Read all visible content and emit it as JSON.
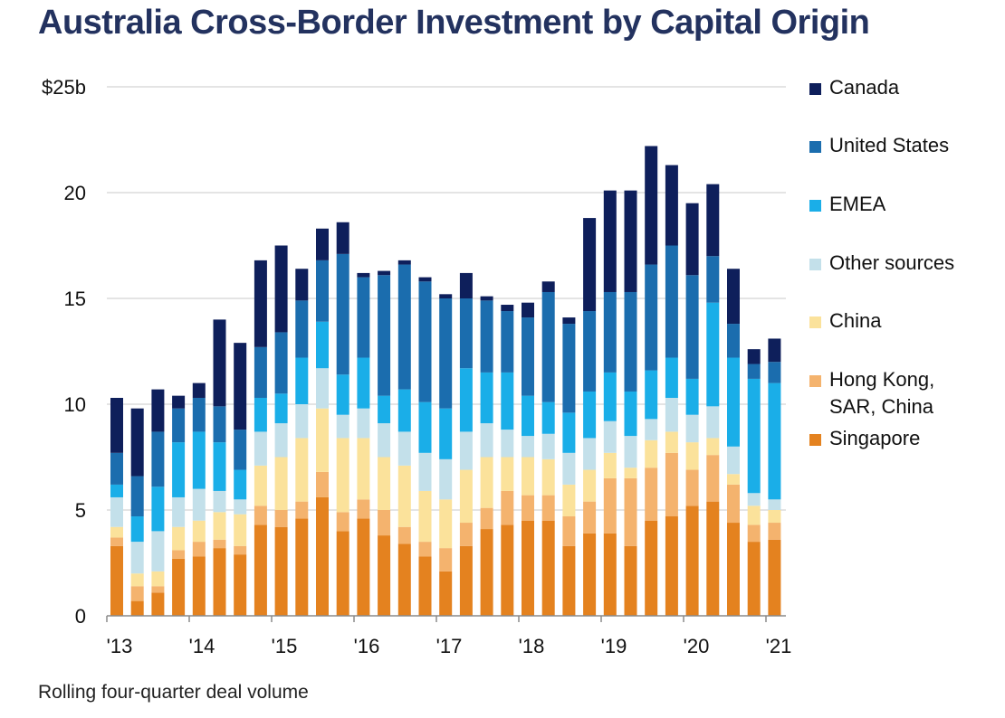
{
  "title": "Australia Cross-Border Investment by Capital Origin",
  "footnote": "Rolling four-quarter deal volume",
  "colors": {
    "Canada": "#0e1f5b",
    "United States": "#1b6dae",
    "EMEA": "#1aaee8",
    "Other sources": "#c3e0ea",
    "China": "#fbe29b",
    "Hong Kong, SAR, China": "#f4b36e",
    "Singapore": "#e4821f"
  },
  "chart_data": {
    "type": "bar",
    "stacked": true,
    "x": [
      "2013 Q1",
      "2013 Q2",
      "2013 Q3",
      "2013 Q4",
      "2014 Q1",
      "2014 Q2",
      "2014 Q3",
      "2014 Q4",
      "2015 Q1",
      "2015 Q2",
      "2015 Q3",
      "2015 Q4",
      "2016 Q1",
      "2016 Q2",
      "2016 Q3",
      "2016 Q4",
      "2017 Q1",
      "2017 Q2",
      "2017 Q3",
      "2017 Q4",
      "2018 Q1",
      "2018 Q2",
      "2018 Q3",
      "2018 Q4",
      "2019 Q1",
      "2019 Q2",
      "2019 Q3",
      "2019 Q4",
      "2020 Q1",
      "2020 Q2",
      "2020 Q3",
      "2020 Q4",
      "2021 Q1"
    ],
    "x_tick_labels": [
      "'13",
      "'14",
      "'15",
      "'16",
      "'17",
      "'18",
      "'19",
      "'20",
      "'21"
    ],
    "y_tick_labels": [
      "0",
      "5",
      "10",
      "15",
      "20",
      "$25b"
    ],
    "ylim": [
      0,
      25
    ],
    "grid": true,
    "legend_position": "right",
    "series": [
      {
        "name": "Singapore",
        "values": [
          3.3,
          0.7,
          1.1,
          2.7,
          2.8,
          3.2,
          2.9,
          4.3,
          4.2,
          4.6,
          5.6,
          4.0,
          4.6,
          3.8,
          3.4,
          2.8,
          2.1,
          3.3,
          4.1,
          4.3,
          4.5,
          4.5,
          3.3,
          3.9,
          3.9,
          3.3,
          4.5,
          4.7,
          5.2,
          5.4,
          4.4,
          3.5,
          3.6
        ]
      },
      {
        "name": "Hong Kong, SAR, China",
        "values": [
          0.4,
          0.7,
          0.3,
          0.4,
          0.7,
          0.4,
          0.4,
          0.9,
          0.8,
          0.8,
          1.2,
          0.9,
          0.9,
          1.2,
          0.8,
          0.7,
          1.1,
          1.1,
          1.0,
          1.6,
          1.2,
          1.2,
          1.4,
          1.5,
          2.6,
          3.2,
          2.5,
          3.0,
          1.7,
          2.2,
          1.8,
          0.8,
          0.8
        ]
      },
      {
        "name": "China",
        "values": [
          0.5,
          0.6,
          0.7,
          1.1,
          1.0,
          1.3,
          1.5,
          1.9,
          2.5,
          3.0,
          3.0,
          3.5,
          2.9,
          2.5,
          2.9,
          2.4,
          2.3,
          2.5,
          2.4,
          1.6,
          1.8,
          1.7,
          1.5,
          1.5,
          1.2,
          0.5,
          1.3,
          1.0,
          1.3,
          0.8,
          0.5,
          0.9,
          0.6
        ]
      },
      {
        "name": "Other sources",
        "values": [
          1.4,
          1.5,
          1.9,
          1.4,
          1.5,
          1.0,
          0.7,
          1.6,
          1.6,
          1.6,
          1.9,
          1.1,
          1.4,
          1.6,
          1.6,
          1.8,
          1.9,
          1.8,
          1.6,
          1.3,
          1.0,
          1.2,
          1.5,
          1.5,
          1.5,
          1.5,
          1.0,
          1.6,
          1.3,
          1.5,
          1.3,
          0.6,
          0.5
        ]
      },
      {
        "name": "EMEA",
        "values": [
          0.6,
          1.2,
          2.1,
          2.6,
          2.7,
          2.3,
          1.4,
          1.6,
          1.4,
          2.2,
          2.2,
          1.9,
          2.4,
          1.3,
          2.0,
          2.4,
          2.4,
          3.0,
          2.4,
          2.7,
          1.9,
          1.5,
          1.9,
          2.2,
          2.3,
          2.1,
          2.3,
          1.9,
          1.7,
          4.9,
          4.2,
          5.4,
          5.5
        ]
      },
      {
        "name": "United States",
        "values": [
          1.5,
          1.9,
          2.6,
          1.6,
          1.6,
          1.7,
          1.9,
          2.4,
          2.9,
          2.7,
          2.9,
          5.7,
          3.8,
          5.7,
          5.9,
          5.7,
          5.2,
          3.3,
          3.4,
          2.9,
          3.7,
          5.2,
          4.2,
          3.8,
          3.8,
          4.7,
          5.0,
          5.3,
          4.9,
          2.2,
          1.6,
          0.7,
          1.0
        ]
      },
      {
        "name": "Canada",
        "values": [
          2.6,
          3.2,
          2.0,
          0.6,
          0.7,
          4.1,
          4.1,
          4.1,
          4.1,
          1.5,
          1.5,
          1.5,
          0.2,
          0.2,
          0.2,
          0.2,
          0.2,
          1.2,
          0.2,
          0.3,
          0.7,
          0.5,
          0.3,
          4.4,
          4.8,
          4.8,
          5.6,
          3.8,
          3.4,
          3.4,
          2.6,
          0.7,
          1.1
        ]
      }
    ]
  }
}
